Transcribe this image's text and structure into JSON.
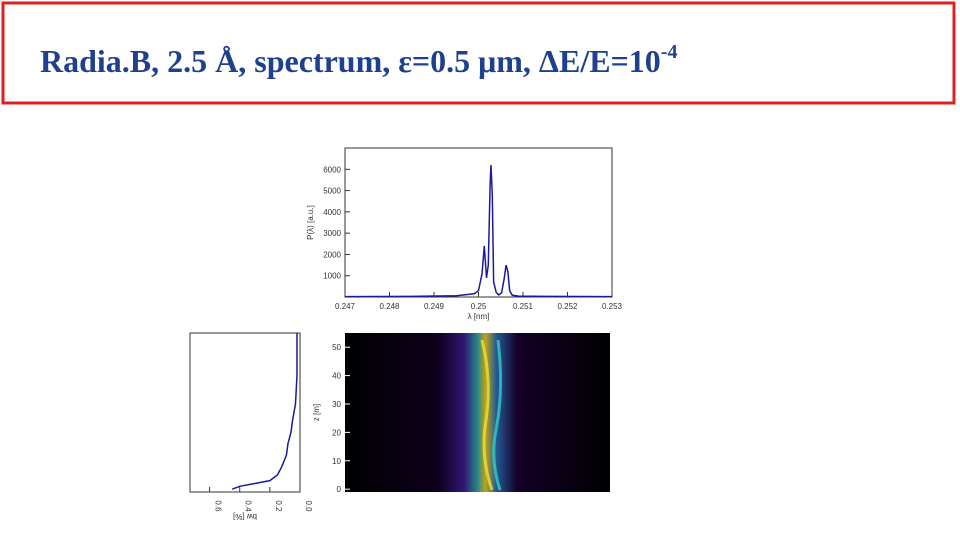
{
  "title": {
    "main": "Radia.B, 2.5 Å, spectrum, ε=0.5 μm, ΔE/E=10",
    "superscript": "-4"
  },
  "chart_data": [
    {
      "type": "line",
      "x_label": "λ [nm]",
      "y_label": "P(λ) [a.u.]",
      "x": [
        0.247,
        0.2485,
        0.2495,
        0.2499,
        0.25,
        0.25008,
        0.25013,
        0.25018,
        0.25022,
        0.25026,
        0.25028,
        0.25031,
        0.25034,
        0.2504,
        0.25046,
        0.25052,
        0.25058,
        0.25062,
        0.25066,
        0.2507,
        0.25076,
        0.2509,
        0.2515,
        0.253
      ],
      "series": [
        {
          "color": "#1a1aa0",
          "values": [
            20,
            30,
            60,
            150,
            300,
            1100,
            2400,
            900,
            1500,
            5200,
            6200,
            4800,
            700,
            200,
            100,
            200,
            900,
            1500,
            1200,
            300,
            80,
            40,
            30,
            20
          ]
        }
      ],
      "xlim": [
        0.247,
        0.253
      ],
      "xticks": [
        0.247,
        0.248,
        0.249,
        0.25,
        0.251,
        0.252,
        0.253
      ],
      "ylim": [
        0,
        7000
      ],
      "yticks": [
        1000,
        2000,
        3000,
        4000,
        5000,
        6000
      ]
    },
    {
      "type": "line",
      "x_label": "bw [%]",
      "x": [
        0.45,
        0.4,
        0.3,
        0.2,
        0.15,
        0.12,
        0.09,
        0.08,
        0.06,
        0.05,
        0.03,
        0.02,
        0.02,
        0.02
      ],
      "y": [
        0,
        1,
        2,
        3,
        5,
        8,
        12,
        16,
        20,
        24,
        30,
        40,
        50,
        55
      ],
      "color": "#1a1aa0",
      "xlim": [
        0.73,
        0
      ],
      "xticks": [
        0.6,
        0.4,
        0.2,
        {
          "value": 0,
          "label": "0.0"
        }
      ],
      "ylim": [
        -1,
        55
      ]
    },
    {
      "type": "heatmap",
      "y_label": "z [m]",
      "ylim": [
        -1,
        55
      ],
      "yticks": [
        0,
        10,
        20,
        30,
        40,
        50
      ]
    }
  ]
}
